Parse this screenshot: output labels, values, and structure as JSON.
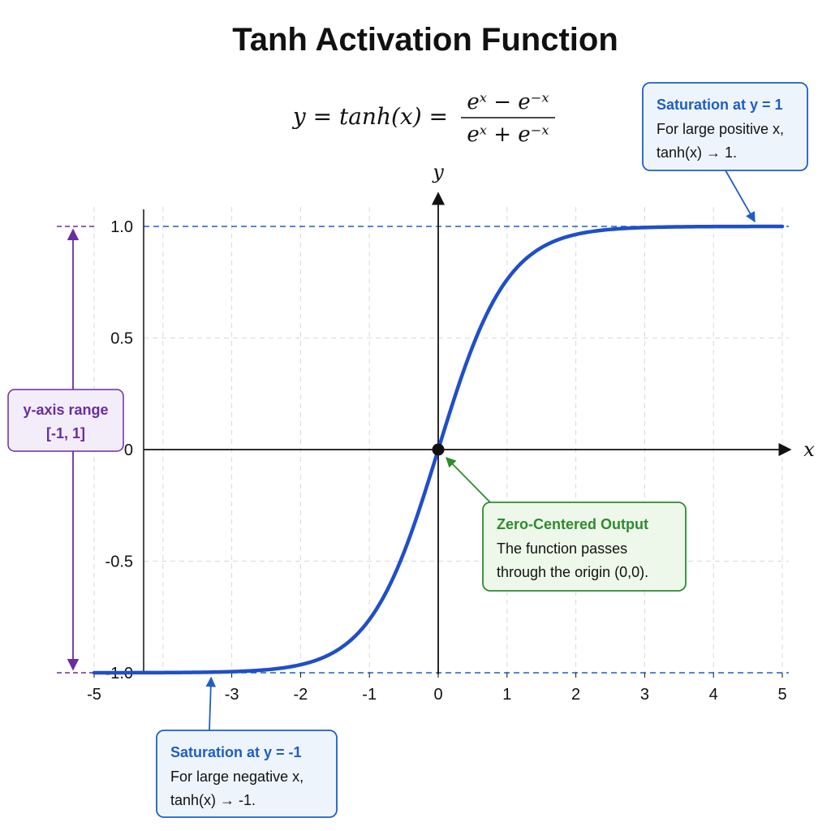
{
  "colors": {
    "curve": "#1f4fc8",
    "saturation": "#1f5ec4",
    "zero": "#2e8b2e",
    "range": "#6a2d9f",
    "grid": "#d9d9d9",
    "axis": "#111111"
  },
  "chart_data": {
    "type": "line",
    "title": "Tanh Activation Function",
    "formula": {
      "lhs": "y = tanh(x) =",
      "numerator": "eˣ − e⁻ˣ",
      "denominator": "eˣ + e⁻ˣ"
    },
    "function": "tanh",
    "xlabel": "x",
    "ylabel": "y",
    "xlim": [
      -5,
      5
    ],
    "ylim": [
      -1,
      1
    ],
    "grid": true,
    "x_ticks": [
      "-5",
      "-3",
      "-2",
      "-1",
      "0",
      "1",
      "2",
      "3",
      "4",
      "5"
    ],
    "x_tick_values": [
      -5,
      -3,
      -2,
      -1,
      0,
      1,
      2,
      3,
      4,
      5
    ],
    "y_ticks": [
      "1.0",
      "0.5",
      "0",
      "-0.5",
      "-1.0"
    ],
    "y_tick_values": [
      1,
      0.5,
      0,
      -0.5,
      -1
    ],
    "series": [
      {
        "x": [
          -5,
          -4.5,
          -4,
          -3.5,
          -3,
          -2.5,
          -2,
          -1.75,
          -1.5,
          -1.25,
          -1,
          -0.75,
          -0.5,
          -0.25,
          0,
          0.25,
          0.5,
          0.75,
          1,
          1.25,
          1.5,
          1.75,
          2,
          2.5,
          3,
          3.5,
          4,
          4.5,
          5
        ],
        "y": [
          -0.9999,
          -0.9998,
          -0.9993,
          -0.9982,
          -0.9951,
          -0.9866,
          -0.964,
          -0.9414,
          -0.9051,
          -0.8483,
          -0.7616,
          -0.6351,
          -0.4621,
          -0.2449,
          0,
          0.2449,
          0.4621,
          0.6351,
          0.7616,
          0.8483,
          0.9051,
          0.9414,
          0.964,
          0.9866,
          0.9951,
          0.9982,
          0.9993,
          0.9998,
          0.9999
        ]
      }
    ],
    "reference_lines": [
      1,
      -1
    ],
    "origin_point": [
      0,
      0
    ],
    "annotations": {
      "upper": {
        "title": "Saturation at y = 1",
        "line1": "For large positive x,",
        "line2": "tanh(x) → 1.",
        "target": [
          4.6,
          1
        ]
      },
      "lower": {
        "title": "Saturation at y = -1",
        "line1": "For large negative x,",
        "line2": "tanh(x) → -1.",
        "target": [
          -3.3,
          -1
        ]
      },
      "zero": {
        "title": "Zero-Centered Output",
        "line1": "The function passes",
        "line2": "through the origin (0,0).",
        "target": [
          0,
          0
        ]
      },
      "range": {
        "line1": "y-axis range",
        "line2": "[-1, 1]"
      }
    }
  }
}
